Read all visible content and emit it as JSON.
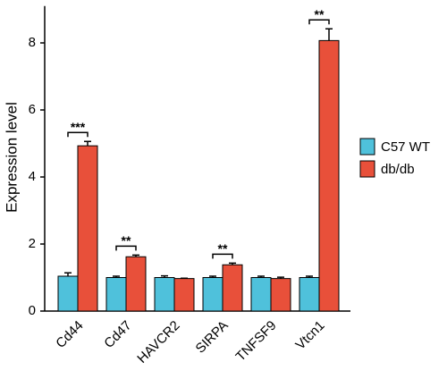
{
  "chart_data": {
    "type": "bar",
    "ylabel": "Expression level",
    "categories": [
      "Cd44",
      "Cd47",
      "HAVCR2",
      "SIRPA",
      "TNFSF9",
      "Vtcn1"
    ],
    "series": [
      {
        "name": "C57 WT",
        "color": "#4fc1db",
        "values": [
          1.04,
          1.0,
          1.0,
          1.0,
          1.0,
          1.0
        ],
        "errors": [
          0.1,
          0.04,
          0.05,
          0.04,
          0.04,
          0.04
        ]
      },
      {
        "name": "db/db",
        "color": "#e8503a",
        "values": [
          4.93,
          1.62,
          0.97,
          1.38,
          0.97,
          8.07
        ],
        "errors": [
          0.13,
          0.05,
          0.01,
          0.05,
          0.04,
          0.35
        ]
      }
    ],
    "annotations": [
      {
        "text": "***",
        "category": "Cd44"
      },
      {
        "text": "**",
        "category": "Cd47"
      },
      {
        "text": "**",
        "category": "SIRPA"
      },
      {
        "text": "**",
        "category": "Vtcn1"
      }
    ],
    "ylim": [
      0,
      9.1
    ],
    "yticks": [
      0,
      2,
      4,
      6,
      8
    ],
    "legend": "right"
  }
}
